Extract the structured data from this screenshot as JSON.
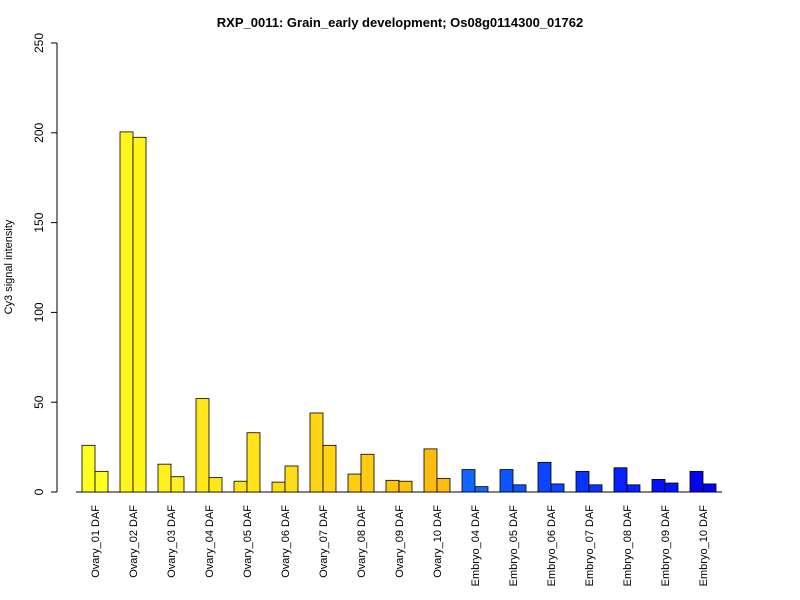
{
  "chart_data": {
    "type": "bar",
    "title": "RXP_0011: Grain_early development; Os08g0114300_01762",
    "xlabel": "",
    "ylabel": "Cy3 signal intensity",
    "ylim": [
      0,
      250
    ],
    "yticks": [
      0,
      50,
      100,
      150,
      200,
      250
    ],
    "grid": false,
    "legend": "none",
    "categories": [
      "Ovary_01 DAF",
      "Ovary_02 DAF",
      "Ovary_03 DAF",
      "Ovary_04 DAF",
      "Ovary_05 DAF",
      "Ovary_06 DAF",
      "Ovary_07 DAF",
      "Ovary_08 DAF",
      "Ovary_09 DAF",
      "Ovary_10 DAF",
      "Embryo_04 DAF",
      "Embryo_05 DAF",
      "Embryo_06 DAF",
      "Embryo_07 DAF",
      "Embryo_08 DAF",
      "Embryo_09 DAF",
      "Embryo_10 DAF"
    ],
    "colors": [
      "#ffff22",
      "#fff51c",
      "#ffef1c",
      "#ffe81a",
      "#ffe21a",
      "#ffdc18",
      "#ffd416",
      "#ffcc14",
      "#ffc412",
      "#ffbc10",
      "#1166ff",
      "#0f55ff",
      "#0c44ff",
      "#0a33ff",
      "#0822ff",
      "#0611ff",
      "#0404ee"
    ],
    "series": [
      {
        "values": [
          26,
          200.5,
          15.5,
          52,
          6,
          5.5,
          44,
          10,
          6.5,
          24,
          12.5,
          12.5,
          16.5,
          11.5,
          13.5,
          7,
          11.5
        ]
      },
      {
        "values": [
          11.5,
          197.5,
          8.5,
          8,
          33,
          14.5,
          26,
          21,
          6,
          7.5,
          3,
          4,
          4.5,
          4,
          4,
          5,
          4.5
        ]
      }
    ]
  }
}
